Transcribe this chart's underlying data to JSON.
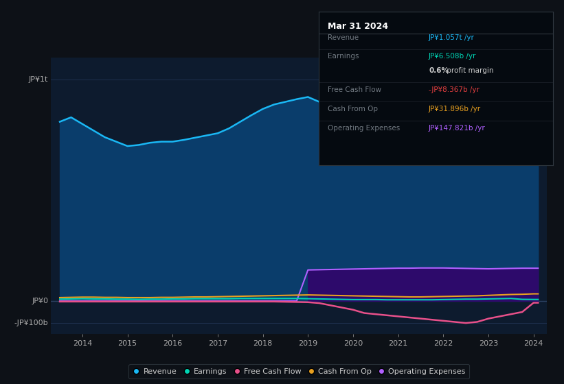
{
  "bg_color": "#0d1117",
  "plot_bg_color": "#0d1b2e",
  "years": [
    2013.5,
    2013.75,
    2014.0,
    2014.25,
    2014.5,
    2014.75,
    2015.0,
    2015.25,
    2015.5,
    2015.75,
    2016.0,
    2016.25,
    2016.5,
    2016.75,
    2017.0,
    2017.25,
    2017.5,
    2017.75,
    2018.0,
    2018.25,
    2018.5,
    2018.75,
    2019.0,
    2019.25,
    2019.5,
    2019.75,
    2020.0,
    2020.25,
    2020.5,
    2020.75,
    2021.0,
    2021.25,
    2021.5,
    2021.75,
    2022.0,
    2022.25,
    2022.5,
    2022.75,
    2023.0,
    2023.25,
    2023.5,
    2023.75,
    2024.0,
    2024.1
  ],
  "revenue": [
    810,
    830,
    800,
    770,
    740,
    720,
    700,
    705,
    715,
    720,
    720,
    728,
    738,
    748,
    758,
    780,
    810,
    840,
    868,
    888,
    900,
    912,
    922,
    900,
    870,
    840,
    810,
    795,
    775,
    762,
    742,
    718,
    688,
    662,
    643,
    660,
    698,
    748,
    820,
    898,
    958,
    1018,
    1057,
    1057
  ],
  "earnings": [
    8,
    9,
    10,
    9,
    9,
    8,
    8,
    7,
    8,
    8,
    9,
    9,
    10,
    10,
    10,
    10,
    11,
    11,
    11,
    11,
    11,
    11,
    10,
    9,
    8,
    7,
    6,
    6,
    6,
    5,
    5,
    5,
    5,
    5,
    6,
    7,
    8,
    8,
    9,
    10,
    11,
    7,
    6.5,
    6.5
  ],
  "free_cash_flow": [
    -3,
    -3,
    -3,
    -3,
    -3,
    -3,
    -3,
    -3,
    -3,
    -3,
    -3,
    -3,
    -3,
    -3,
    -3,
    -3,
    -3,
    -3,
    -3,
    -3,
    -4,
    -5,
    -6,
    -10,
    -20,
    -30,
    -40,
    -55,
    -60,
    -65,
    -70,
    -75,
    -80,
    -85,
    -90,
    -95,
    -100,
    -95,
    -80,
    -70,
    -60,
    -50,
    -8.367,
    -8.367
  ],
  "cash_from_op": [
    15,
    16,
    17,
    17,
    16,
    16,
    15,
    15,
    15,
    16,
    16,
    17,
    18,
    18,
    19,
    20,
    21,
    22,
    23,
    24,
    25,
    26,
    27,
    26,
    25,
    24,
    23,
    22,
    21,
    20,
    19,
    18,
    18,
    19,
    20,
    21,
    22,
    23,
    25,
    27,
    29,
    30,
    31.896,
    31.896
  ],
  "operating_expenses": [
    0,
    0,
    0,
    0,
    0,
    0,
    0,
    0,
    0,
    0,
    0,
    0,
    0,
    0,
    0,
    0,
    0,
    0,
    0,
    0,
    0,
    0,
    140,
    141,
    142,
    143,
    144,
    145,
    146,
    147,
    148,
    148,
    149,
    149,
    149,
    148,
    147,
    146,
    145,
    146,
    147,
    147.821,
    147.821,
    147.821
  ],
  "revenue_line_color": "#1ab8f5",
  "revenue_fill_color": "#0a3d6b",
  "earnings_color": "#00d4b4",
  "fcf_color": "#e8508a",
  "cashop_color": "#e8a020",
  "opex_line_color": "#b060ff",
  "opex_fill_color": "#2d0a6b",
  "xticks": [
    2014,
    2015,
    2016,
    2017,
    2018,
    2019,
    2020,
    2021,
    2022,
    2023,
    2024
  ],
  "ylim": [
    -150,
    1100
  ],
  "xlim": [
    2013.3,
    2024.3
  ],
  "grid_color": "#1e3050",
  "zero_line_color": "#2a4060",
  "legend_items": [
    {
      "label": "Revenue",
      "color": "#1ab8f5"
    },
    {
      "label": "Earnings",
      "color": "#00d4b4"
    },
    {
      "label": "Free Cash Flow",
      "color": "#e8508a"
    },
    {
      "label": "Cash From Op",
      "color": "#e8a020"
    },
    {
      "label": "Operating Expenses",
      "color": "#b060ff"
    }
  ],
  "infobox_bg": "#050a10",
  "infobox_border": "#303840",
  "infobox_title": "Mar 31 2024",
  "infobox_rows": [
    {
      "label": "Revenue",
      "value": "JP¥1.057t /yr",
      "value_color": "#1ab8f5"
    },
    {
      "label": "Earnings",
      "value": "JP¥6.508b /yr",
      "value_color": "#00d4b4"
    },
    {
      "label": "",
      "value": "0.6% profit margin",
      "value_color": "#cccccc",
      "bold": "0.6%"
    },
    {
      "label": "Free Cash Flow",
      "value": "-JP¥8.367b /yr",
      "value_color": "#e84040"
    },
    {
      "label": "Cash From Op",
      "value": "JP¥31.896b /yr",
      "value_color": "#e8a020"
    },
    {
      "label": "Operating Expenses",
      "value": "JP¥147.821b /yr",
      "value_color": "#b060ff"
    }
  ]
}
